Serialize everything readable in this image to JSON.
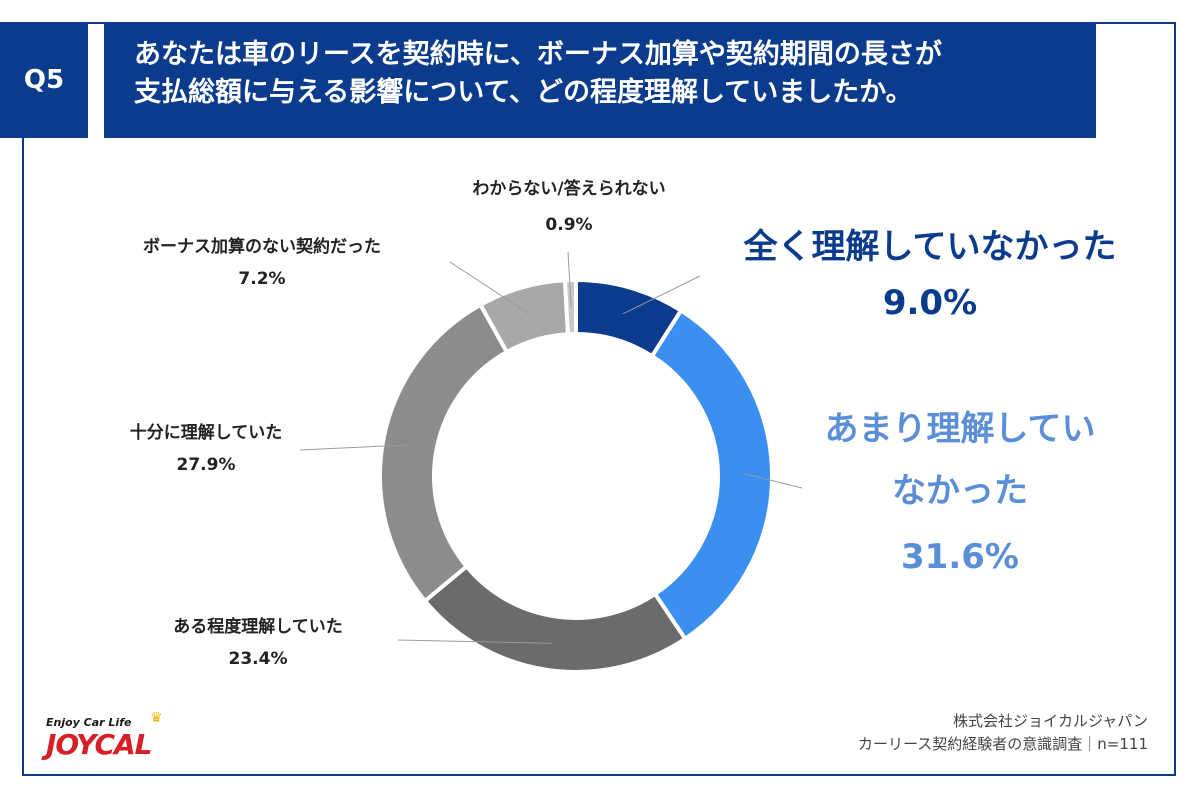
{
  "question": {
    "badge": "Q5",
    "line1": "あなたは車のリースを契約時に、ボーナス加算や契約期間の長さが",
    "line2": "支払総額に与える影響について、どの程度理解していましたか。"
  },
  "chart_data": {
    "type": "pie",
    "donut": true,
    "slices": [
      {
        "label": "全く理解していなかった",
        "label_lines": [
          "全く理解していなかった"
        ],
        "value": 9.0,
        "display": "9.0%",
        "color": "#0b3b8c",
        "text_color": "#0b3b8c"
      },
      {
        "label": "あまり理解していなかった",
        "label_lines": [
          "あまり理解してい",
          "なかった"
        ],
        "value": 31.6,
        "display": "31.6%",
        "color": "#3a8ff0",
        "text_color": "#5a8fd8"
      },
      {
        "label": "ある程度理解していた",
        "label_lines": [
          "ある程度理解していた"
        ],
        "value": 23.4,
        "display": "23.4%",
        "color": "#6b6b6b",
        "text_color": "#222222"
      },
      {
        "label": "十分に理解していた",
        "label_lines": [
          "十分に理解していた"
        ],
        "value": 27.9,
        "display": "27.9%",
        "color": "#8c8c8c",
        "text_color": "#222222"
      },
      {
        "label": "ボーナス加算のない契約だった",
        "label_lines": [
          "ボーナス加算のない契約だった"
        ],
        "value": 7.2,
        "display": "7.2%",
        "color": "#a8a8a8",
        "text_color": "#222222"
      },
      {
        "label": "わからない/答えられない",
        "label_lines": [
          "わからない/答えられない"
        ],
        "value": 0.9,
        "display": "0.9%",
        "color": "#c8c8c8",
        "text_color": "#222222"
      }
    ]
  },
  "source": {
    "line1": "株式会社ジョイカルジャパン",
    "line2": "カーリース契約経験者の意識調査｜n=111"
  },
  "logo": {
    "tagline": "Enjoy Car Life",
    "wordmark": "JOYCAL"
  }
}
